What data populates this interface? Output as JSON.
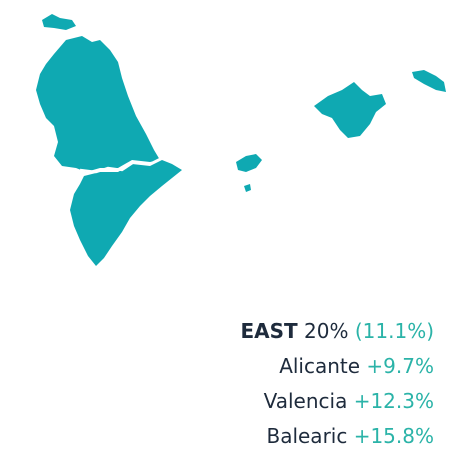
{
  "region": {
    "name": "EAST",
    "share": "20%",
    "change": "(11.1%)"
  },
  "provinces": [
    {
      "name": "Alicante",
      "change": "+9.7%"
    },
    {
      "name": "Valencia",
      "change": "+12.3%"
    },
    {
      "name": "Balearic",
      "change": "+15.8%"
    }
  ]
}
